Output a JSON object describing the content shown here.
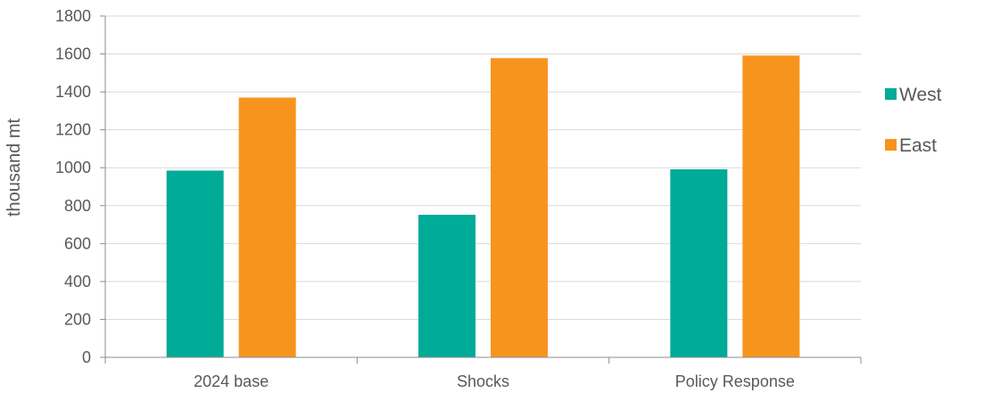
{
  "chart_data": {
    "type": "bar",
    "categories": [
      "2024 base",
      "Shocks",
      "Policy Response"
    ],
    "series": [
      {
        "name": "West",
        "values": [
          985,
          752,
          992
        ],
        "color": "#00ab97"
      },
      {
        "name": "East",
        "values": [
          1370,
          1578,
          1592
        ],
        "color": "#f7941d"
      }
    ],
    "ylabel": "thousand mt",
    "xlabel": "",
    "ylim": [
      0,
      1800
    ],
    "yticks": [
      0,
      200,
      400,
      600,
      800,
      1000,
      1200,
      1400,
      1600,
      1800
    ],
    "grid": true,
    "legend_position": "right"
  }
}
